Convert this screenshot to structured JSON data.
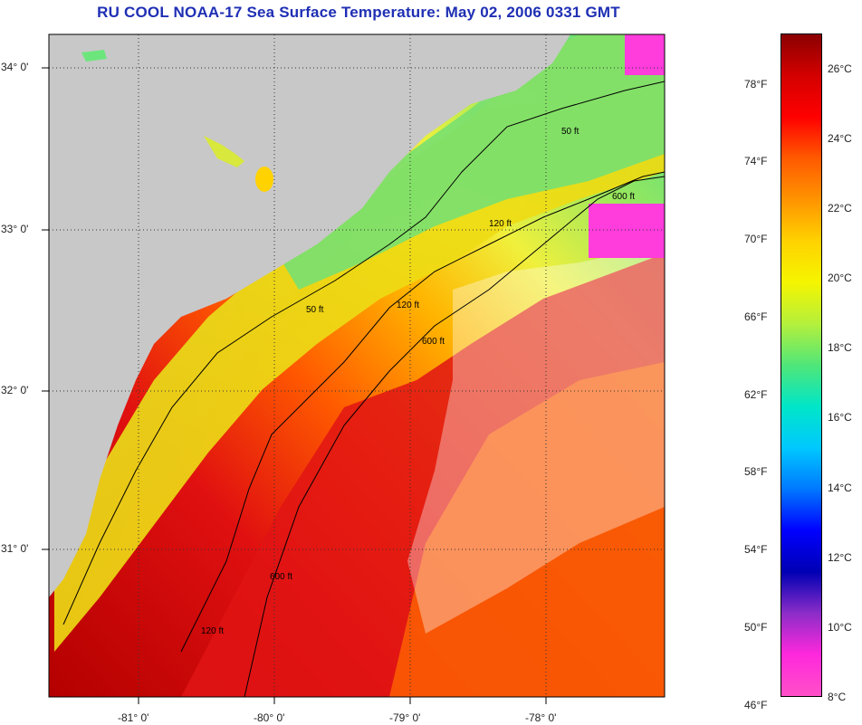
{
  "title": "RU COOL  NOAA-17  Sea Surface Temperature:  May 02, 2006 0331 GMT",
  "map": {
    "lat_labels": [
      {
        "text": "34° 0'",
        "lat": 34.0
      },
      {
        "text": "33° 0'",
        "lat": 33.0
      },
      {
        "text": "32° 0'",
        "lat": 32.0
      },
      {
        "text": "31° 0'",
        "lat": 31.0
      }
    ],
    "lon_labels": [
      {
        "text": "-81° 0'",
        "lon": -81.0
      },
      {
        "text": "-80° 0'",
        "lon": -80.0
      },
      {
        "text": "-79° 0'",
        "lon": -79.0
      },
      {
        "text": "-78° 0'",
        "lon": -78.0
      }
    ],
    "contour_labels": [
      "50 ft",
      "120 ft",
      "600 ft"
    ],
    "land_color": "#c8c8c8",
    "cloud_color": "#ffffff",
    "grid": "dotted"
  },
  "colorbar": {
    "celsius_labels": [
      "26°C",
      "24°C",
      "22°C",
      "20°C",
      "18°C",
      "16°C",
      "14°C",
      "12°C",
      "10°C",
      "8°C"
    ],
    "fahrenheit_labels": [
      "78°F",
      "74°F",
      "70°F",
      "66°F",
      "62°F",
      "58°F",
      "54°F",
      "50°F",
      "46°F"
    ],
    "colors_top_to_bottom": [
      "#8b0000",
      "#d40000",
      "#ff0000",
      "#ff5a00",
      "#ff9400",
      "#ffd200",
      "#f5f500",
      "#b4f03c",
      "#50e678",
      "#00e6c8",
      "#00c8ff",
      "#0078ff",
      "#0000ff",
      "#0000b4",
      "#8c2dc8",
      "#ff28dc",
      "#ff50c8"
    ]
  }
}
